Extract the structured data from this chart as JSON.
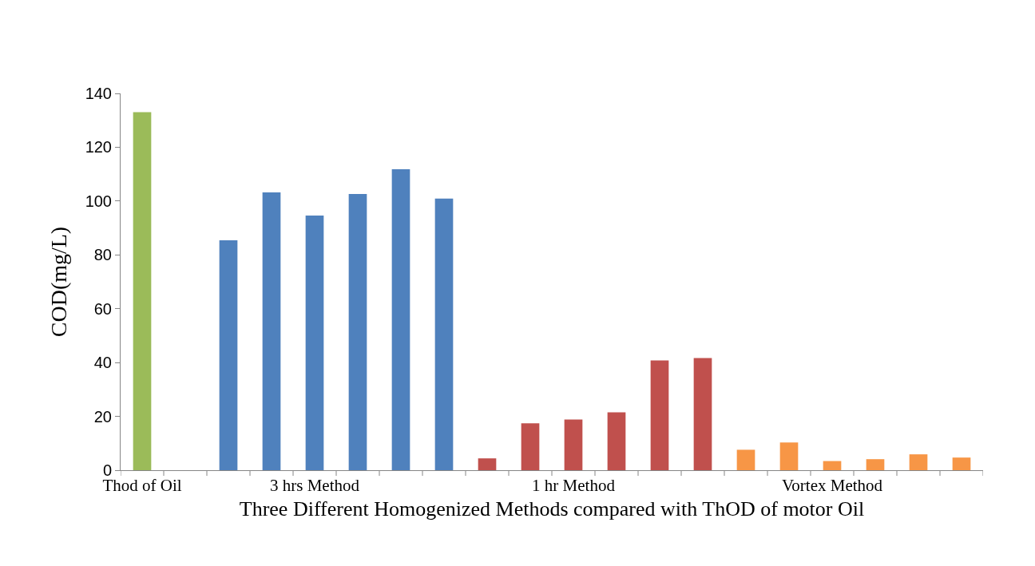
{
  "chart_data": {
    "type": "bar",
    "xlabel": "Three Different Homogenized Methods compared with ThOD of motor Oil",
    "ylabel": "COD(mg/L)",
    "categories": [
      "Thod of Oil",
      null,
      null,
      null,
      "3 hrs Method",
      null,
      null,
      null,
      null,
      null,
      "1 hr Method",
      null,
      null,
      null,
      null,
      null,
      "Vortex Method",
      null,
      null,
      null
    ],
    "values": [
      133,
      null,
      85.4,
      103.2,
      94.6,
      102.6,
      111.8,
      100.9,
      4.4,
      17.4,
      18.8,
      21.5,
      40.8,
      41.7,
      7.6,
      10.3,
      3.4,
      4.1,
      5.9,
      4.7
    ],
    "colors": [
      "#9bbb59",
      "#4f81bd",
      "#4f81bd",
      "#4f81bd",
      "#4f81bd",
      "#4f81bd",
      "#4f81bd",
      "#4f81bd",
      "#c0504d",
      "#c0504d",
      "#c0504d",
      "#c0504d",
      "#c0504d",
      "#c0504d",
      "#f79646",
      "#f79646",
      "#f79646",
      "#f79646",
      "#f79646",
      "#f79646"
    ],
    "ylim": [
      0,
      140
    ],
    "yticks": [
      0,
      20,
      40,
      60,
      80,
      100,
      120,
      140
    ]
  }
}
